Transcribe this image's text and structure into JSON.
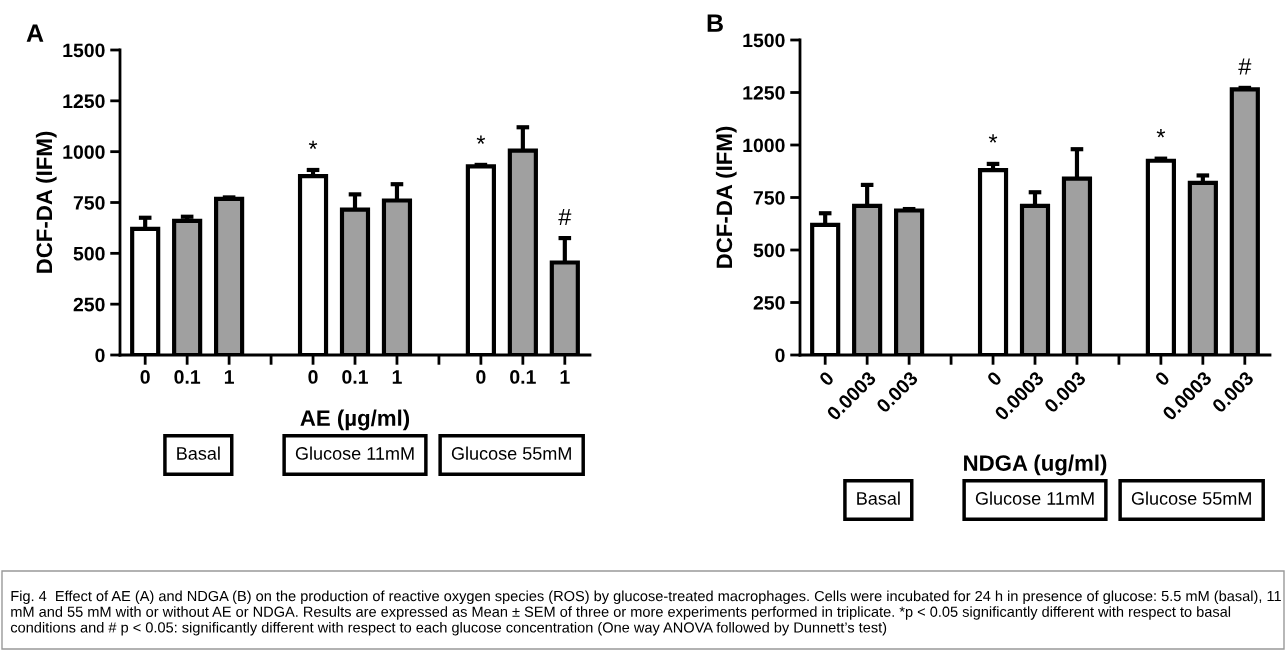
{
  "chart_data": [
    {
      "type": "bar",
      "title": "A",
      "xlabel": "AE (µg/ml)",
      "ylabel": "DCF-DA (IFM)",
      "categories": [
        "0",
        "0.1",
        "1",
        null,
        "0",
        "0.1",
        "1",
        null,
        "0",
        "0.1",
        "1"
      ],
      "values": [
        620,
        660,
        768,
        null,
        880,
        715,
        760,
        null,
        928,
        1005,
        455
      ],
      "colors": [
        "#ffffff",
        "#a0a0a0",
        "#a0a0a0",
        null,
        "#ffffff",
        "#a0a0a0",
        "#a0a0a0",
        null,
        "#ffffff",
        "#a0a0a0",
        "#a0a0a0"
      ],
      "errors": [
        [
          620,
          675
        ],
        [
          660,
          680
        ],
        [
          768,
          775
        ],
        null,
        [
          880,
          910
        ],
        [
          715,
          790
        ],
        [
          760,
          840
        ],
        null,
        [
          928,
          935
        ],
        [
          1005,
          1120
        ],
        [
          455,
          575
        ]
      ],
      "value_labels": [
        null,
        null,
        null,
        null,
        "*",
        null,
        null,
        null,
        "*",
        null,
        "#"
      ],
      "ylim": [
        0,
        1500
      ],
      "yticks": [
        0,
        250,
        500,
        750,
        1000,
        1250,
        1500
      ],
      "annotations": [
        "Fig. 4  Effect of AE (A) and NDGA (B) on the production of reactive oxygen species (ROS) by glucose-treated macrophages. Cells were incubated for 24 h in presence of glucose: 5.5 mM (basal), 11 mM and 55 mM with or without AE or NDGA. Results are expressed as Mean ± SEM of three or more experiments performed in triplicate. *p < 0.05 significantly different with respect to basal conditions and # p < 0.05: significantly different with respect to each glucose concentration (One way ANOVA followed by Dunnett’s test)",
        "Basal",
        "Glucose 11mM",
        "Glucose 55mM"
      ]
    },
    {
      "type": "bar",
      "title": "B",
      "xlabel": "NDGA (ug/ml)",
      "ylabel": "DCF-DA (IFM)",
      "categories": [
        "0",
        "0.0003",
        "0.003",
        null,
        "0",
        "0.0003",
        "0.003",
        null,
        "0",
        "0.0003",
        "0.003"
      ],
      "values": [
        620,
        710,
        688,
        null,
        880,
        710,
        840,
        null,
        925,
        820,
        1265
      ],
      "colors": [
        "#ffffff",
        "#a0a0a0",
        "#a0a0a0",
        null,
        "#ffffff",
        "#a0a0a0",
        "#a0a0a0",
        null,
        "#ffffff",
        "#a0a0a0",
        "#a0a0a0"
      ],
      "errors": [
        [
          620,
          675
        ],
        [
          710,
          810
        ],
        [
          688,
          695
        ],
        null,
        [
          880,
          910
        ],
        [
          710,
          775
        ],
        [
          840,
          980
        ],
        null,
        [
          925,
          935
        ],
        [
          820,
          855
        ],
        [
          1265,
          1272
        ]
      ],
      "value_labels": [
        null,
        null,
        null,
        null,
        "*",
        null,
        null,
        null,
        "*",
        null,
        "#"
      ],
      "ylim": [
        0,
        1500
      ],
      "yticks": [
        0,
        250,
        500,
        750,
        1000,
        1250,
        1500
      ],
      "annotations": [
        "Basal",
        "Glucose 11mM",
        "Glucose 55mM"
      ]
    }
  ]
}
